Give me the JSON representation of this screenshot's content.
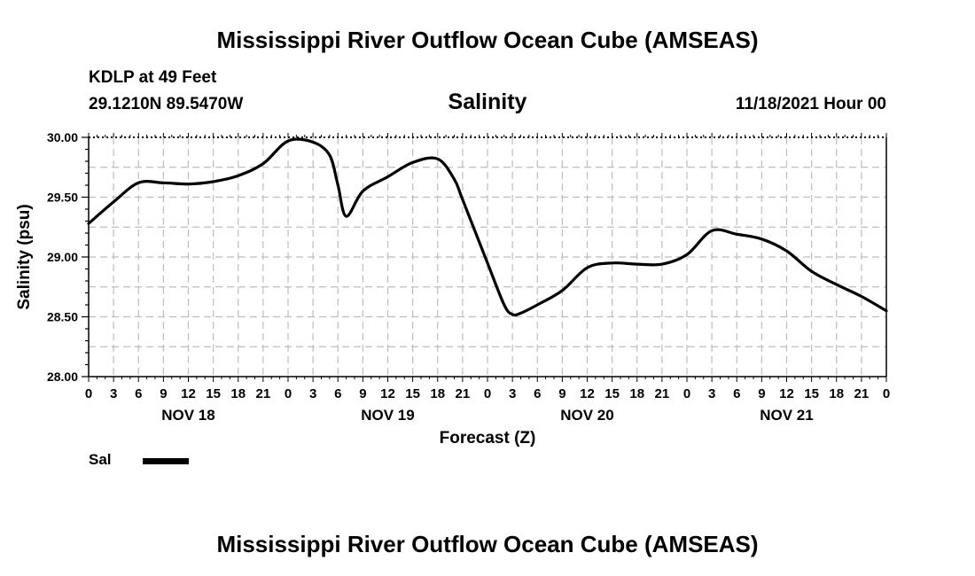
{
  "header": {
    "title": "Mississippi River Outflow Ocean Cube (AMSEAS)",
    "station": "KDLP at 49 Feet",
    "coords": "29.1210N  89.5470W",
    "datetime": "11/18/2021 Hour 00"
  },
  "footer": {
    "title": "Mississippi River Outflow Ocean Cube (AMSEAS)"
  },
  "chart_data": {
    "type": "line",
    "title": "Salinity",
    "xlabel": "Forecast (Z)",
    "ylabel": "Salinity (psu)",
    "ylim": [
      28.0,
      30.0
    ],
    "y_ticks": [
      "28.00",
      "28.50",
      "29.00",
      "29.50",
      "30.00"
    ],
    "x_range_hours": [
      0,
      96
    ],
    "x_tick_labels": [
      "0",
      "3",
      "6",
      "9",
      "12",
      "15",
      "18",
      "21",
      "0",
      "3",
      "6",
      "9",
      "12",
      "15",
      "18",
      "21",
      "0",
      "3",
      "6",
      "9",
      "12",
      "15",
      "18",
      "21",
      "0",
      "3",
      "6",
      "9",
      "12",
      "15",
      "18",
      "21",
      "0"
    ],
    "day_labels": [
      "NOV 18",
      "NOV 19",
      "NOV 20",
      "NOV 21"
    ],
    "grid": true,
    "legend": [
      {
        "label": "Sal",
        "color": "#000000"
      }
    ],
    "series": [
      {
        "name": "Sal",
        "x": [
          0,
          3,
          6,
          9,
          12,
          15,
          18,
          21,
          24,
          27,
          29,
          30,
          31,
          33,
          36,
          39,
          42,
          44,
          45,
          48,
          50,
          51,
          52,
          54,
          57,
          60,
          63,
          66,
          69,
          72,
          75,
          78,
          81,
          84,
          87,
          90,
          93,
          96
        ],
        "values": [
          29.28,
          29.46,
          29.62,
          29.62,
          29.61,
          29.63,
          29.68,
          29.78,
          29.97,
          29.96,
          29.85,
          29.6,
          29.34,
          29.55,
          29.67,
          29.79,
          29.82,
          29.65,
          29.48,
          28.95,
          28.6,
          28.52,
          28.53,
          28.6,
          28.72,
          28.91,
          28.95,
          28.94,
          28.94,
          29.02,
          29.22,
          29.19,
          29.15,
          29.05,
          28.88,
          28.77,
          28.67,
          28.55
        ]
      }
    ]
  }
}
